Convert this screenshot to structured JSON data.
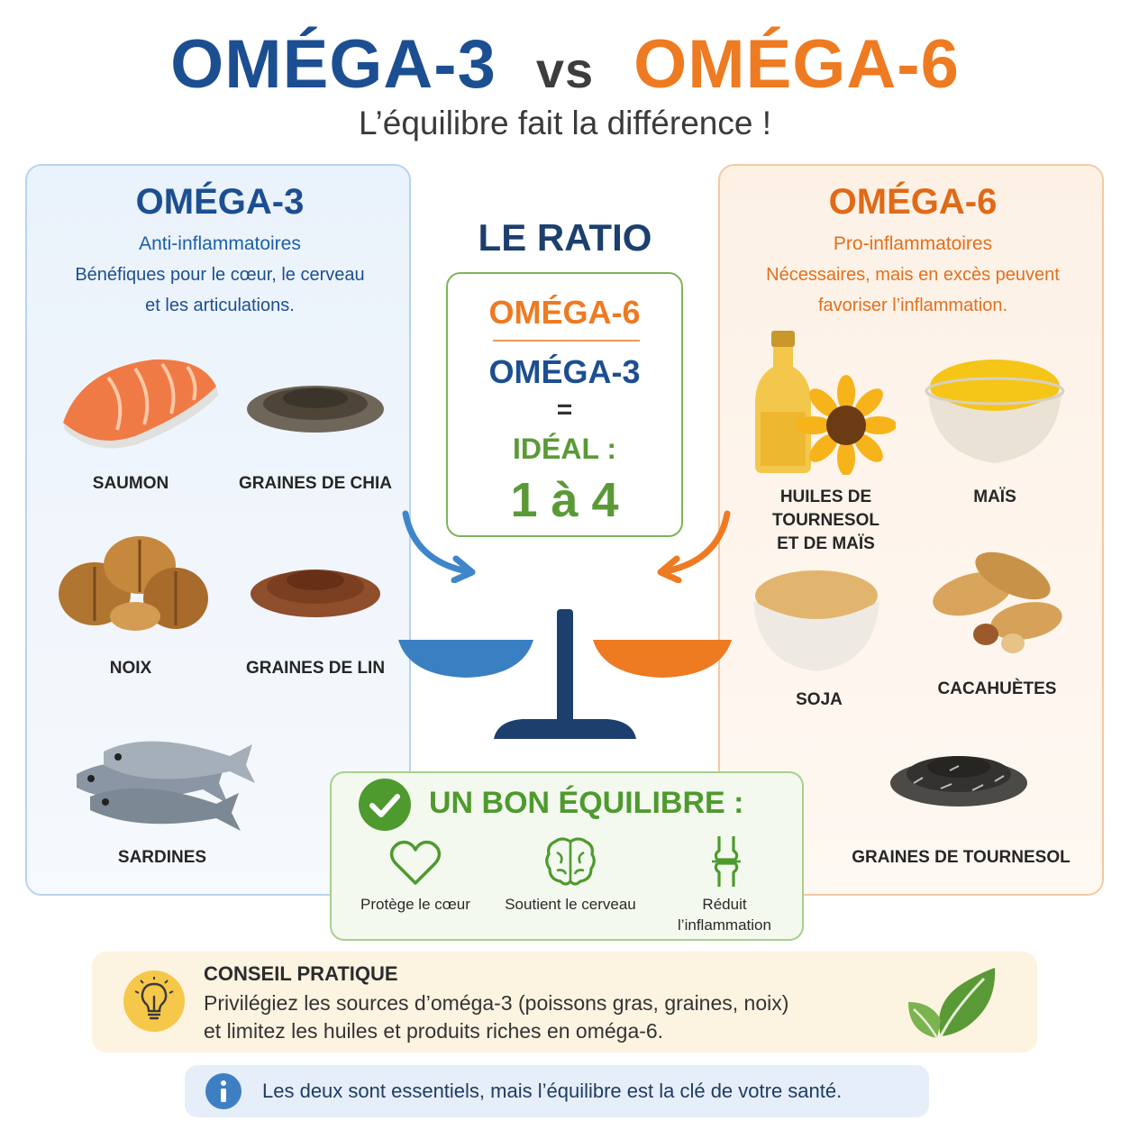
{
  "header": {
    "title_left": "OMÉGA-3",
    "title_vs": "vs",
    "title_right": "OMÉGA-6",
    "subtitle": "L’équilibre fait la différence !"
  },
  "left_panel": {
    "heading": "OMÉGA-3",
    "tagline": "Anti-inflammatoires",
    "description_line1": "Bénéfiques pour le cœur, le cerveau",
    "description_line2": "et les articulations.",
    "foods": {
      "salmon": "SAUMON",
      "chia": "GRAINES DE CHIA",
      "walnuts": "NOIX",
      "flax": "GRAINES DE LIN",
      "sardines": "SARDINES"
    }
  },
  "right_panel": {
    "heading": "OMÉGA-6",
    "tagline": "Pro-inflammatoires",
    "description_line1": "Nécessaires, mais en excès peuvent",
    "description_line2": "favoriser l’inflammation.",
    "foods": {
      "oils_line1": "HUILES DE TOURNESOL",
      "oils_line2": "ET DE MAÏS",
      "corn": "MAÏS",
      "soy": "SOJA",
      "peanuts": "CACAHUÈTES",
      "sunflower_seeds": "GRAINES DE TOURNESOL"
    }
  },
  "ratio": {
    "title": "LE RATIO",
    "numerator": "OMÉGA-6",
    "denominator": "OMÉGA-3",
    "equals": "=",
    "ideal_label": "IDÉAL :",
    "ideal_value": "1 à 4"
  },
  "balance": {
    "title": "UN BON ÉQUILIBRE :",
    "benefits": {
      "heart": "Protège le cœur",
      "brain": "Soutient le cerveau",
      "inflammation_line1": "Réduit",
      "inflammation_line2": "l’inflammation"
    }
  },
  "tip": {
    "title": "CONSEIL PRATIQUE",
    "line1": "Privilégiez les sources d’oméga-3 (poissons gras, graines, noix)",
    "line2": "et limitez les huiles et produits riches en oméga-6."
  },
  "info": {
    "text": "Les deux sont essentiels, mais l’équilibre est la clé de votre santé."
  },
  "colors": {
    "omega3": "#1c4f91",
    "omega6": "#ee7a22",
    "green": "#5a9a36"
  }
}
